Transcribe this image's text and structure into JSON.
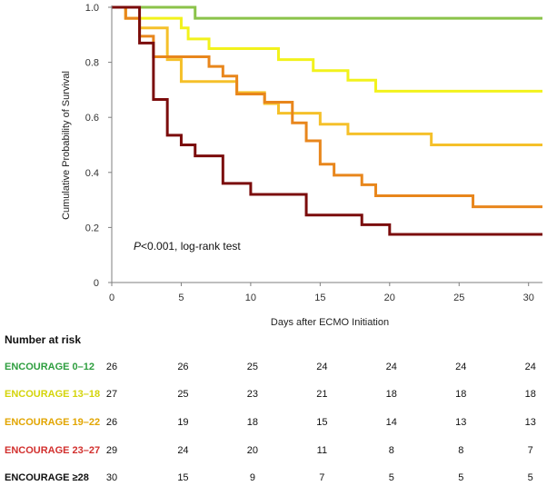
{
  "chart_data": {
    "type": "line",
    "step": true,
    "xlabel": "Days after ECMO Initiation",
    "ylabel": "Cumulative Probability of Survival",
    "xlim": [
      0,
      31
    ],
    "ylim": [
      0,
      1.0
    ],
    "x_ticks": [
      "0",
      "5",
      "10",
      "15",
      "20",
      "25",
      "30"
    ],
    "y_ticks": [
      "0",
      "0.2",
      "0.4",
      "0.6",
      "0.8",
      "1.0"
    ],
    "grid": false,
    "annotation": {
      "italic": "P",
      "text": "<0.001, log-rank test"
    },
    "series": [
      {
        "name": "ENCOURAGE 0–12",
        "color": "#8BC34A",
        "label_color": "#2E9E3F",
        "points": [
          [
            0,
            1.0
          ],
          [
            6,
            0.96
          ],
          [
            31,
            0.96
          ]
        ]
      },
      {
        "name": "ENCOURAGE 13–18",
        "color": "#F2F21C",
        "label_color": "#D4D40A",
        "points": [
          [
            0,
            1.0
          ],
          [
            1,
            0.96
          ],
          [
            5,
            0.925
          ],
          [
            5.5,
            0.885
          ],
          [
            7,
            0.85
          ],
          [
            12,
            0.81
          ],
          [
            14.5,
            0.77
          ],
          [
            17,
            0.735
          ],
          [
            19,
            0.695
          ],
          [
            31,
            0.695
          ]
        ]
      },
      {
        "name": "ENCOURAGE 19–22",
        "color": "#F5C02A",
        "label_color": "#E2A500",
        "points": [
          [
            0,
            1.0
          ],
          [
            1,
            0.96
          ],
          [
            2,
            0.925
          ],
          [
            4,
            0.81
          ],
          [
            5,
            0.73
          ],
          [
            9,
            0.69
          ],
          [
            11,
            0.65
          ],
          [
            12,
            0.615
          ],
          [
            15,
            0.575
          ],
          [
            17,
            0.54
          ],
          [
            23,
            0.5
          ],
          [
            31,
            0.5
          ]
        ]
      },
      {
        "name": "ENCOURAGE 23–27",
        "color": "#E8861C",
        "label_color": "#D2302E",
        "points": [
          [
            0,
            1.0
          ],
          [
            1,
            0.96
          ],
          [
            2,
            0.895
          ],
          [
            3,
            0.82
          ],
          [
            7,
            0.785
          ],
          [
            8,
            0.75
          ],
          [
            9,
            0.685
          ],
          [
            11,
            0.655
          ],
          [
            13,
            0.58
          ],
          [
            14,
            0.515
          ],
          [
            15,
            0.43
          ],
          [
            16,
            0.39
          ],
          [
            18,
            0.355
          ],
          [
            19,
            0.315
          ],
          [
            26,
            0.275
          ],
          [
            31,
            0.275
          ]
        ]
      },
      {
        "name": "ENCOURAGE ≥28",
        "color": "#7B0C0C",
        "label_color": "#111111",
        "points": [
          [
            0,
            1.0
          ],
          [
            2,
            0.87
          ],
          [
            3,
            0.665
          ],
          [
            4,
            0.535
          ],
          [
            5,
            0.5
          ],
          [
            6,
            0.46
          ],
          [
            8,
            0.36
          ],
          [
            10,
            0.32
          ],
          [
            14,
            0.245
          ],
          [
            18,
            0.21
          ],
          [
            20,
            0.175
          ],
          [
            31,
            0.175
          ]
        ]
      }
    ]
  },
  "risk_table": {
    "title": "Number at risk",
    "columns": [
      "0",
      "5",
      "10",
      "15",
      "20",
      "25",
      "30"
    ],
    "rows": [
      {
        "label": "ENCOURAGE 0–12",
        "values": [
          "26",
          "26",
          "25",
          "24",
          "24",
          "24",
          "24"
        ]
      },
      {
        "label": "ENCOURAGE 13–18",
        "values": [
          "27",
          "25",
          "23",
          "21",
          "18",
          "18",
          "18"
        ]
      },
      {
        "label": "ENCOURAGE 19–22",
        "values": [
          "26",
          "19",
          "18",
          "15",
          "14",
          "13",
          "13"
        ]
      },
      {
        "label": "ENCOURAGE 23–27",
        "values": [
          "29",
          "24",
          "20",
          "11",
          "8",
          "8",
          "7"
        ]
      },
      {
        "label": "ENCOURAGE ≥28",
        "values": [
          "30",
          "15",
          "9",
          "7",
          "5",
          "5",
          "5"
        ]
      }
    ]
  }
}
